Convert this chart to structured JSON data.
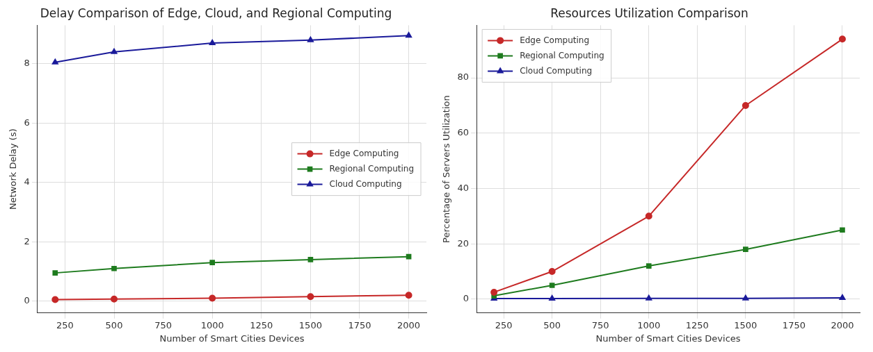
{
  "chart_data": [
    {
      "type": "line",
      "title": "Delay Comparison of Edge, Cloud, and Regional Computing",
      "xlabel": "Number of Smart Cities Devices",
      "ylabel": "Network Delay (s)",
      "x": [
        200,
        500,
        1000,
        1500,
        2000
      ],
      "xlim": [
        110,
        2090
      ],
      "xticks": [
        250,
        500,
        750,
        1000,
        1250,
        1500,
        1750,
        2000
      ],
      "ylim": [
        -0.4,
        9.3
      ],
      "yticks": [
        0,
        2,
        4,
        6,
        8
      ],
      "grid": true,
      "legend": "center right",
      "series": [
        {
          "name": "Edge Computing",
          "color": "#c62828",
          "marker": "circle",
          "values": [
            0.05,
            0.07,
            0.1,
            0.15,
            0.2
          ]
        },
        {
          "name": "Regional Computing",
          "color": "#1e7b1e",
          "marker": "square",
          "values": [
            0.95,
            1.1,
            1.3,
            1.4,
            1.5
          ]
        },
        {
          "name": "Cloud Computing",
          "color": "#1a1a9a",
          "marker": "triangle",
          "values": [
            8.05,
            8.4,
            8.7,
            8.8,
            8.95
          ]
        }
      ]
    },
    {
      "type": "line",
      "title": "Resources Utilization Comparison",
      "xlabel": "Number of Smart Cities Devices",
      "ylabel": "Percentage of Servers Utilization",
      "x": [
        200,
        500,
        1000,
        1500,
        2000
      ],
      "xlim": [
        110,
        2090
      ],
      "xticks": [
        250,
        500,
        750,
        1000,
        1250,
        1500,
        1750,
        2000
      ],
      "ylim": [
        -5,
        99
      ],
      "yticks": [
        0,
        20,
        40,
        60,
        80
      ],
      "grid": true,
      "legend": "top left",
      "series": [
        {
          "name": "Edge Computing",
          "color": "#c62828",
          "marker": "circle",
          "values": [
            2.5,
            10,
            30,
            70,
            94
          ]
        },
        {
          "name": "Regional Computing",
          "color": "#1e7b1e",
          "marker": "square",
          "values": [
            1.2,
            5,
            12,
            18,
            25
          ]
        },
        {
          "name": "Cloud Computing",
          "color": "#1a1a9a",
          "marker": "triangle",
          "values": [
            0.2,
            0.2,
            0.3,
            0.3,
            0.5
          ]
        }
      ]
    }
  ]
}
